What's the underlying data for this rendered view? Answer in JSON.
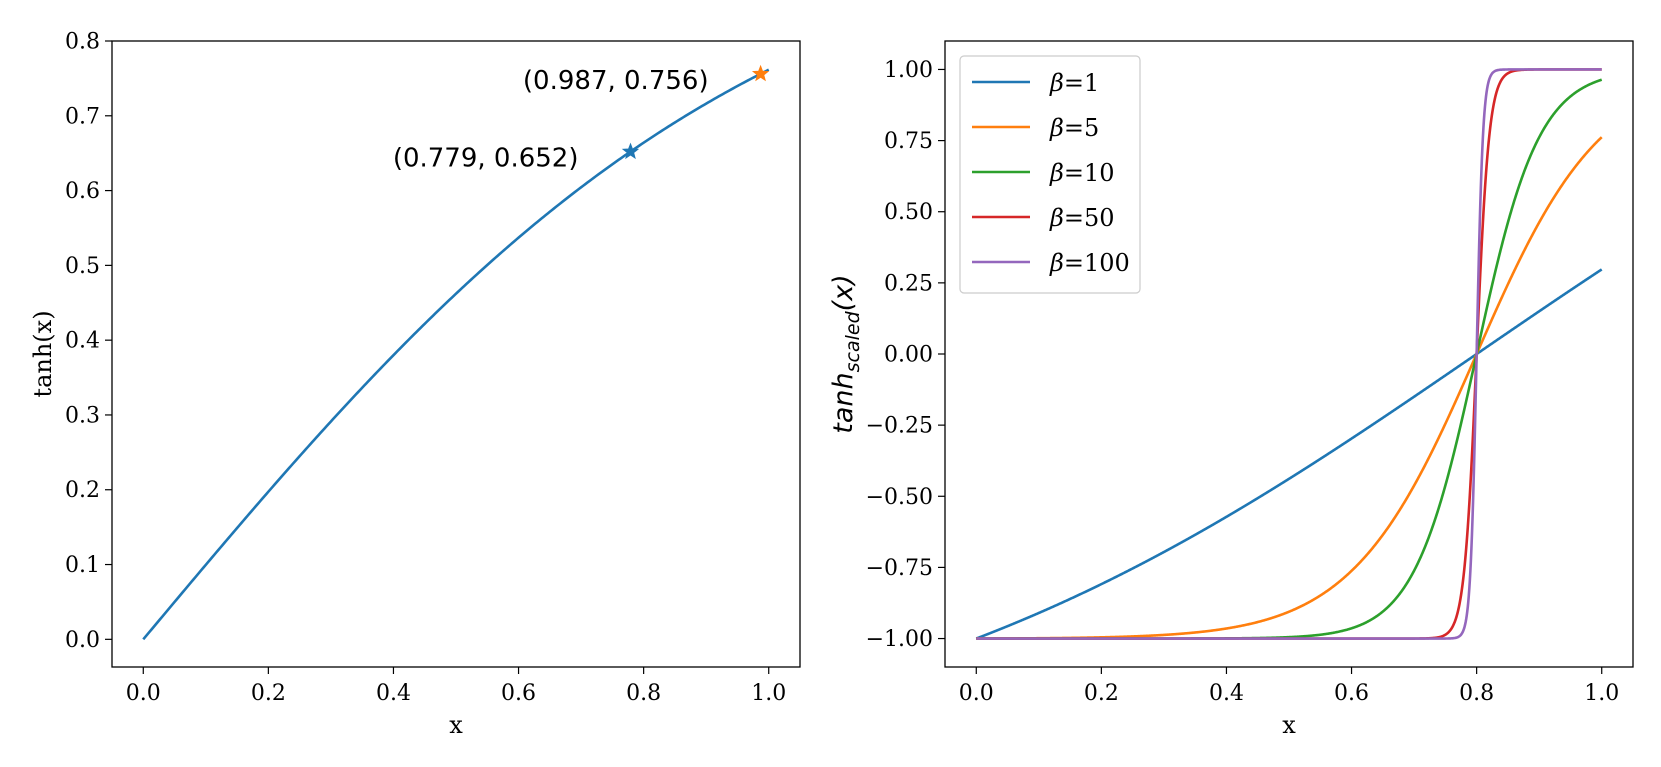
{
  "chart_data": [
    {
      "type": "line",
      "xlabel": "x",
      "ylabel": "tanh(x)",
      "xlim": [
        -0.05,
        1.05
      ],
      "ylim": [
        -0.037,
        0.8
      ],
      "xticks": [
        0.0,
        0.2,
        0.4,
        0.6,
        0.8,
        1.0
      ],
      "xtick_labels": [
        "0.0",
        "0.2",
        "0.4",
        "0.6",
        "0.8",
        "1.0"
      ],
      "yticks": [
        0.0,
        0.1,
        0.2,
        0.3,
        0.4,
        0.5,
        0.6,
        0.7,
        0.8
      ],
      "ytick_labels": [
        "0.0",
        "0.1",
        "0.2",
        "0.3",
        "0.4",
        "0.5",
        "0.6",
        "0.7",
        "0.8"
      ],
      "series": [
        {
          "name": "tanh(x)",
          "color": "#1f77b4",
          "function": "tanh",
          "x_range": [
            0,
            1
          ]
        }
      ],
      "points": [
        {
          "x": 0.779,
          "y": 0.652,
          "label": "(0.779, 0.652)",
          "color": "#1f77b4",
          "marker": "star"
        },
        {
          "x": 0.987,
          "y": 0.756,
          "label": "(0.987, 0.756)",
          "color": "#ff7f0e",
          "marker": "star"
        }
      ]
    },
    {
      "type": "line",
      "xlabel": "x",
      "ylabel_base": "tanh",
      "ylabel_sub": "scaled",
      "ylabel_tail": "(x)",
      "xlim": [
        -0.05,
        1.05
      ],
      "ylim": [
        -1.1,
        1.1
      ],
      "xticks": [
        0.0,
        0.2,
        0.4,
        0.6,
        0.8,
        1.0
      ],
      "xtick_labels": [
        "0.0",
        "0.2",
        "0.4",
        "0.6",
        "0.8",
        "1.0"
      ],
      "yticks": [
        1.0,
        0.75,
        0.5,
        0.25,
        0.0,
        -0.25,
        -0.5,
        -0.75,
        -1.0
      ],
      "ytick_labels": [
        "1.00",
        "0.75",
        "0.50",
        "0.25",
        "0.00",
        "−0.25",
        "−0.50",
        "−0.75",
        "−1.00"
      ],
      "center": 0.8,
      "legend_location": "upper-left",
      "series": [
        {
          "name": "β=1",
          "sym": "β",
          "tail": "=1",
          "beta": 1,
          "color": "#1f77b4"
        },
        {
          "name": "β=5",
          "sym": "β",
          "tail": "=5",
          "beta": 5,
          "color": "#ff7f0e"
        },
        {
          "name": "β=10",
          "sym": "β",
          "tail": "=10",
          "beta": 10,
          "color": "#2ca02c"
        },
        {
          "name": "β=50",
          "sym": "β",
          "tail": "=50",
          "beta": 50,
          "color": "#d62728"
        },
        {
          "name": "β=100",
          "sym": "β",
          "tail": "=100",
          "beta": 100,
          "color": "#9467bd"
        }
      ]
    }
  ]
}
